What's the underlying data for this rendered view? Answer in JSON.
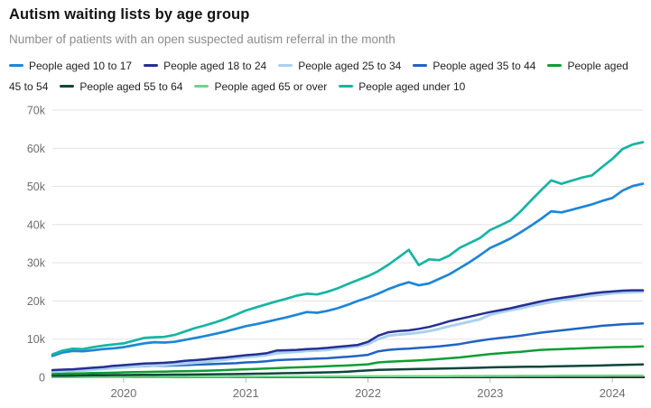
{
  "header": {
    "title": "Autism waiting lists by age group",
    "subtitle": "Number of patients with an open suspected autism referral in the month"
  },
  "colors": {
    "background": "#ffffff",
    "title_text": "#141414",
    "subtitle_text": "#8c8c8c",
    "legend_text": "#1f1f1f",
    "grid_line": "#e2e2e2",
    "axis_line": "#262626",
    "tick_mark": "#b9b9b9",
    "axis_label": "#6e6e6e"
  },
  "chart_data": {
    "type": "line",
    "title": "Autism waiting lists by age group",
    "subtitle": "Number of patients with an open suspected autism referral in the month",
    "x_start": "2019-06",
    "x_end": "2024-04",
    "frequency": "monthly",
    "ylim": [
      0,
      70000
    ],
    "grid": "horizontal",
    "legend_position": "top",
    "y_ticks": [
      {
        "label": "0",
        "value": 0
      },
      {
        "label": "10k",
        "value": 10000
      },
      {
        "label": "20k",
        "value": 20000
      },
      {
        "label": "30k",
        "value": 30000
      },
      {
        "label": "40k",
        "value": 40000
      },
      {
        "label": "50k",
        "value": 50000
      },
      {
        "label": "60k",
        "value": 60000
      },
      {
        "label": "70k",
        "value": 70000
      }
    ],
    "x_ticks": [
      {
        "label": "2020",
        "index": 7
      },
      {
        "label": "2021",
        "index": 19
      },
      {
        "label": "2022",
        "index": 31
      },
      {
        "label": "2023",
        "index": 43
      },
      {
        "label": "2024",
        "index": 55
      }
    ],
    "draw_order": [
      6,
      5,
      4,
      3,
      2,
      1,
      0,
      7
    ],
    "series": [
      {
        "name": "People aged 10 to 17",
        "color": "#1e86d6",
        "stroke_width": 2.7,
        "values": [
          5600,
          6500,
          6900,
          6800,
          7100,
          7400,
          7600,
          7900,
          8400,
          8900,
          9200,
          9100,
          9300,
          9800,
          10300,
          10800,
          11400,
          12000,
          12700,
          13400,
          13900,
          14500,
          15100,
          15700,
          16400,
          17100,
          16900,
          17400,
          18100,
          19000,
          20000,
          20900,
          21900,
          23100,
          24100,
          24900,
          24100,
          24600,
          25800,
          27000,
          28600,
          30200,
          32000,
          33900,
          35100,
          36400,
          38000,
          39700,
          41500,
          43500,
          43200,
          43900,
          44600,
          45300,
          46200,
          47000,
          48900,
          50100,
          50700
        ]
      },
      {
        "name": "People aged 18 to 24",
        "color": "#272f92",
        "stroke_width": 2.5,
        "values": [
          1900,
          2000,
          2100,
          2300,
          2500,
          2700,
          3000,
          3200,
          3400,
          3600,
          3700,
          3800,
          4000,
          4300,
          4500,
          4700,
          5000,
          5200,
          5500,
          5800,
          6000,
          6300,
          7000,
          7100,
          7200,
          7400,
          7500,
          7700,
          8000,
          8200,
          8500,
          9300,
          10900,
          11800,
          12100,
          12300,
          12700,
          13200,
          13900,
          14700,
          15300,
          15900,
          16500,
          17100,
          17600,
          18100,
          18700,
          19300,
          19900,
          20400,
          20800,
          21200,
          21600,
          22000,
          22300,
          22500,
          22700,
          22800,
          22800
        ]
      },
      {
        "name": "People aged 25 to 34",
        "color": "#a9d1ef",
        "stroke_width": 3,
        "values": [
          1500,
          1600,
          1700,
          1800,
          2000,
          2200,
          2400,
          2600,
          2800,
          3000,
          3100,
          3200,
          3400,
          3600,
          3800,
          4000,
          4300,
          4600,
          5000,
          5300,
          5500,
          5800,
          6300,
          6500,
          6700,
          6900,
          7000,
          7200,
          7500,
          7800,
          8100,
          8700,
          10000,
          10900,
          11200,
          11400,
          11700,
          12100,
          12700,
          13400,
          14000,
          14600,
          15200,
          16400,
          17000,
          17600,
          18100,
          18700,
          19200,
          19700,
          20200,
          20600,
          21000,
          21400,
          21700,
          22000,
          22200,
          22300,
          22400
        ]
      },
      {
        "name": "People aged 35 to 44",
        "color": "#1f63c4",
        "stroke_width": 2.5,
        "values": [
          1600,
          1700,
          1800,
          1900,
          2100,
          2300,
          2500,
          2700,
          2800,
          2900,
          3000,
          3000,
          3100,
          3200,
          3300,
          3400,
          3500,
          3600,
          3700,
          3900,
          4000,
          4200,
          4500,
          4600,
          4700,
          4800,
          4900,
          5000,
          5200,
          5400,
          5600,
          5900,
          6800,
          7200,
          7400,
          7500,
          7700,
          7900,
          8100,
          8400,
          8700,
          9200,
          9600,
          10000,
          10300,
          10600,
          10900,
          11300,
          11700,
          12000,
          12300,
          12600,
          12900,
          13200,
          13500,
          13700,
          13900,
          14000,
          14100
        ]
      },
      {
        "name": "People aged 45 to 54",
        "color": "#0f9d33",
        "stroke_width": 2.5,
        "values": [
          900,
          950,
          1000,
          1050,
          1100,
          1150,
          1200,
          1300,
          1350,
          1400,
          1450,
          1500,
          1550,
          1600,
          1650,
          1700,
          1800,
          1900,
          2000,
          2100,
          2200,
          2300,
          2400,
          2500,
          2600,
          2700,
          2800,
          2900,
          3000,
          3100,
          3250,
          3400,
          3900,
          4100,
          4200,
          4300,
          4450,
          4600,
          4800,
          5000,
          5200,
          5500,
          5800,
          6100,
          6300,
          6500,
          6700,
          6950,
          7200,
          7300,
          7400,
          7500,
          7600,
          7700,
          7800,
          7900,
          7950,
          8000,
          8100
        ]
      },
      {
        "name": "People aged 55 to 64",
        "color": "#0d463a",
        "stroke_width": 2.5,
        "values": [
          400,
          430,
          460,
          490,
          520,
          550,
          580,
          600,
          620,
          640,
          660,
          680,
          700,
          720,
          740,
          770,
          800,
          830,
          860,
          900,
          940,
          980,
          1030,
          1080,
          1130,
          1180,
          1240,
          1300,
          1380,
          1500,
          1650,
          1800,
          1950,
          2020,
          2080,
          2130,
          2180,
          2230,
          2280,
          2330,
          2400,
          2450,
          2500,
          2600,
          2650,
          2700,
          2750,
          2780,
          2800,
          2850,
          2900,
          2950,
          3000,
          3050,
          3100,
          3200,
          3250,
          3300,
          3350
        ]
      },
      {
        "name": "People aged 65 or over",
        "color": "#6fd48b",
        "stroke_width": 2.5,
        "values": [
          50,
          50,
          60,
          60,
          70,
          70,
          80,
          80,
          90,
          90,
          100,
          100,
          110,
          110,
          120,
          120,
          130,
          130,
          140,
          150,
          150,
          160,
          170,
          180,
          180,
          190,
          200,
          210,
          220,
          230,
          240,
          250,
          260,
          270,
          280,
          280,
          290,
          300,
          300,
          310,
          320,
          330,
          340,
          350,
          360,
          360,
          370,
          380,
          380,
          390,
          400,
          410,
          420,
          420,
          430,
          440,
          440,
          450,
          450
        ]
      },
      {
        "name": "People aged under 10",
        "color": "#16b5a3",
        "stroke_width": 2.7,
        "values": [
          6000,
          7000,
          7500,
          7400,
          7900,
          8300,
          8600,
          8900,
          9600,
          10300,
          10500,
          10600,
          11100,
          12000,
          12900,
          13600,
          14400,
          15300,
          16400,
          17500,
          18300,
          19100,
          19900,
          20600,
          21400,
          21900,
          21700,
          22400,
          23300,
          24400,
          25500,
          26500,
          27800,
          29500,
          31400,
          33400,
          29400,
          30900,
          30700,
          31900,
          33900,
          35200,
          36500,
          38600,
          39800,
          41100,
          43500,
          46300,
          49000,
          51600,
          50700,
          51500,
          52300,
          52900,
          55100,
          57200,
          59800,
          61000,
          61600
        ]
      }
    ]
  }
}
